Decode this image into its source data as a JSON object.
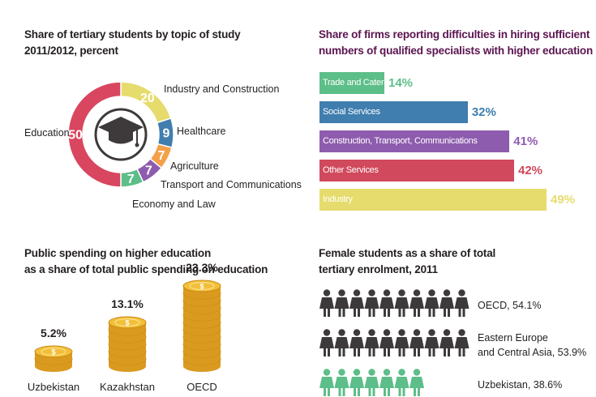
{
  "panels": {
    "topics": {
      "title_line1": "Share of tertiary students by topic of study",
      "title_line2": "2011/2012, percent"
    },
    "firms": {
      "title_line1": "Share of firms reporting difficulties in hiring sufficient",
      "title_line2": "numbers of qualified specialists with higher education"
    },
    "spending": {
      "title_line1": "Public spending on higher education",
      "title_line2": "as a share of total public spending on education"
    },
    "female": {
      "title_line1": "Female students as a share of total",
      "title_line2": "tertiary enrolment, 2011"
    }
  },
  "icons": {
    "donut_center": "graduation-cap-icon",
    "coin": "dollar-coin-icon",
    "person": "female-student-icon"
  },
  "chart_data": [
    {
      "type": "pie",
      "title": "Share of tertiary students by topic of study 2011/2012, percent",
      "categories": [
        "Education",
        "Industry and Construction",
        "Healthcare",
        "Agriculture",
        "Transport and Communications",
        "Economy and Law"
      ],
      "values": [
        50,
        20,
        9,
        7,
        7,
        7
      ],
      "value_labels": [
        "50",
        "20",
        "9",
        "7",
        "7",
        "7"
      ],
      "colors": [
        "#d8465f",
        "#e6dc6d",
        "#3f7eae",
        "#f4a048",
        "#8e5cae",
        "#5cbe88"
      ]
    },
    {
      "type": "bar",
      "orientation": "horizontal",
      "title": "Share of firms reporting difficulties in hiring sufficient numbers of qualified specialists with higher education",
      "categories": [
        "Trade and Catering",
        "Social Services",
        "Construction, Transport, Communications",
        "Other Services",
        "Industry"
      ],
      "values": [
        14,
        32,
        41,
        42,
        49
      ],
      "value_labels": [
        "14%",
        "32%",
        "41%",
        "42%",
        "49%"
      ],
      "unit": "%",
      "colors": [
        "#5cbe88",
        "#3f7eae",
        "#8e5cae",
        "#d0495c",
        "#e6dc6d"
      ]
    },
    {
      "type": "bar",
      "title": "Public spending on higher education as a share of total public spending on education",
      "categories": [
        "Uzbekistan",
        "Kazakhstan",
        "OECD"
      ],
      "values": [
        5.2,
        13.1,
        23.3
      ],
      "value_labels": [
        "5.2%",
        "13.1%",
        "23.3%"
      ],
      "unit": "%"
    },
    {
      "type": "bar",
      "title": "Female students as a share of total tertiary enrolment, 2011",
      "categories": [
        "OECD",
        "Eastern Europe and Central Asia",
        "Uzbekistan"
      ],
      "values": [
        54.1,
        53.9,
        38.6
      ],
      "value_labels": [
        "OECD, 54.1%",
        "Eastern Europe and Central Asia, 53.9%",
        "Uzbekistan, 38.6%"
      ],
      "label_lines": [
        [
          "OECD, 54.1%"
        ],
        [
          "Eastern Europe",
          "and Central Asia, 53.9%"
        ],
        [
          "Uzbekistan, 38.6%"
        ]
      ],
      "unit": "%",
      "colors": [
        "#3e3a3b",
        "#3e3a3b",
        "#5cbe88"
      ]
    }
  ]
}
